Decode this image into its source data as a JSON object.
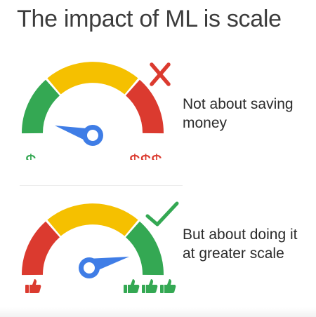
{
  "slide": {
    "title": "The impact of ML is scale",
    "top_gauge": {
      "left_label": "$",
      "right_label": "$$$",
      "mark": "x-mark",
      "mark_color": "#db3a2f",
      "caption_lines": [
        "Not about saving",
        "money"
      ]
    },
    "bottom_gauge": {
      "left_icon": "thumbs-up-icon",
      "left_icon_count": 1,
      "left_icon_color": "#db3a2f",
      "right_icon": "thumbs-up-icon",
      "right_icon_count": 3,
      "right_icon_color": "#34a853",
      "mark": "check-mark",
      "mark_color": "#34a853",
      "caption_lines": [
        "But about doing it",
        "at greater scale"
      ]
    },
    "colors": {
      "red": "#db3a2f",
      "yellow": "#f5c000",
      "green": "#34a853",
      "blue": "#3f7de6",
      "text": "#3c3c3c"
    }
  }
}
